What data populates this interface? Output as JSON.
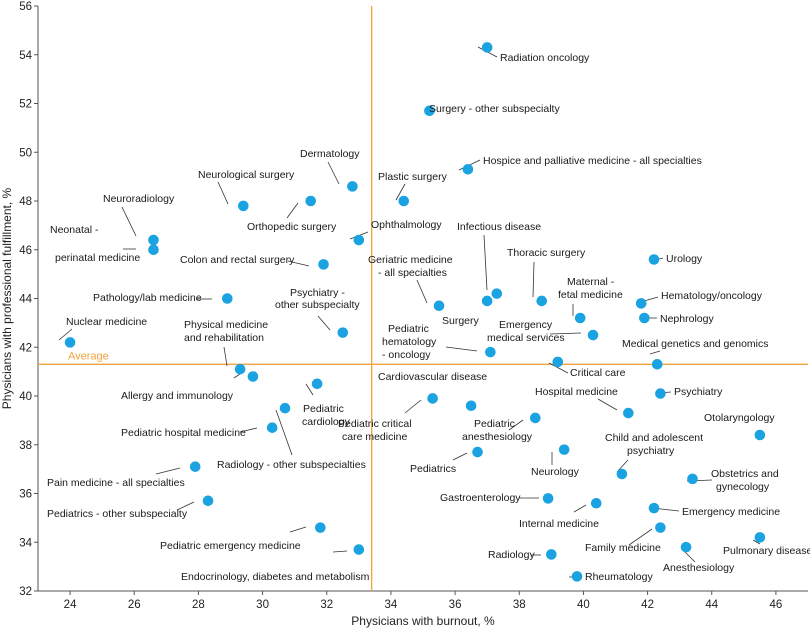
{
  "chart_data": {
    "type": "scatter",
    "xlabel": "Physicians with burnout, %",
    "ylabel": "Physicians with professional fulfillment, %",
    "xlim": [
      23,
      47
    ],
    "ylim": [
      32,
      56
    ],
    "xticks": [
      24,
      26,
      28,
      30,
      32,
      34,
      36,
      38,
      40,
      42,
      44,
      46
    ],
    "yticks": [
      32,
      34,
      36,
      38,
      40,
      42,
      44,
      46,
      48,
      50,
      52,
      54,
      56
    ],
    "grid": false,
    "colors": {
      "point": "#1aa3e0",
      "average": "#f0a23c",
      "axis": "#555555",
      "leader": "#333333"
    },
    "average": {
      "label": "Average",
      "x": 33.4,
      "y": 41.3
    },
    "points": [
      {
        "label": "Radiation oncology",
        "x": 37.0,
        "y": 54.3
      },
      {
        "label": "Surgery - other subspecialty",
        "x": 35.2,
        "y": 51.7
      },
      {
        "label": "Hospice and palliative medicine - all specialties",
        "x": 36.4,
        "y": 49.3
      },
      {
        "label": "Dermatology",
        "x": 32.8,
        "y": 48.6
      },
      {
        "label": "Plastic surgery",
        "x": 34.4,
        "y": 48.0
      },
      {
        "label": "Neurological surgery",
        "x": 29.4,
        "y": 47.8
      },
      {
        "label": "Orthopedic surgery",
        "x": 31.5,
        "y": 48.0
      },
      {
        "label": "Neuroradiology",
        "x": 26.6,
        "y": 46.4
      },
      {
        "label": "Neonatal - perinatal medicine",
        "x": 26.6,
        "y": 46.0
      },
      {
        "label": "Ophthalmology",
        "x": 33.0,
        "y": 46.4
      },
      {
        "label": "Colon and rectal surgery",
        "x": 31.9,
        "y": 45.4
      },
      {
        "label": "Infectious disease",
        "x": 37.3,
        "y": 44.2
      },
      {
        "label": "Urology",
        "x": 42.2,
        "y": 45.6
      },
      {
        "label": "Thoracic surgery",
        "x": 38.7,
        "y": 43.9
      },
      {
        "label": "Geriatric medicine - all specialties",
        "x": 35.5,
        "y": 43.7
      },
      {
        "label": "Surgery",
        "x": 37.0,
        "y": 43.9
      },
      {
        "label": "Pathology/lab medicine",
        "x": 28.9,
        "y": 44.0
      },
      {
        "label": "Maternal - fetal medicine",
        "x": 39.9,
        "y": 43.2
      },
      {
        "label": "Hematology/oncology",
        "x": 41.8,
        "y": 43.8
      },
      {
        "label": "Nephrology",
        "x": 41.9,
        "y": 43.2
      },
      {
        "label": "Psychiatry - other subspecialty",
        "x": 32.5,
        "y": 42.6
      },
      {
        "label": "Emergency medical services",
        "x": 40.3,
        "y": 42.5
      },
      {
        "label": "Nuclear medicine",
        "x": 24.0,
        "y": 42.2
      },
      {
        "label": "Pediatric hematology - oncology",
        "x": 37.1,
        "y": 41.8
      },
      {
        "label": "Physical medicine and rehabilitation",
        "x": 29.3,
        "y": 41.1
      },
      {
        "label": "Medical genetics and genomics",
        "x": 42.3,
        "y": 41.3
      },
      {
        "label": "Critical care",
        "x": 39.2,
        "y": 41.4
      },
      {
        "label": "Allergy and immunology",
        "x": 29.7,
        "y": 40.8
      },
      {
        "label": "Pediatric cardiology",
        "x": 31.7,
        "y": 40.5
      },
      {
        "label": "Cardiovascular disease",
        "x": 36.5,
        "y": 39.6
      },
      {
        "label": "Pediatric critical care medicine",
        "x": 35.3,
        "y": 39.9
      },
      {
        "label": "Psychiatry",
        "x": 42.4,
        "y": 40.1
      },
      {
        "label": "Hospital medicine",
        "x": 41.4,
        "y": 39.3
      },
      {
        "label": "Pediatric anesthesiology",
        "x": 38.5,
        "y": 39.1
      },
      {
        "label": "Radiology - other subspecialties",
        "x": 30.7,
        "y": 39.5
      },
      {
        "label": "Pediatric hospital medicine",
        "x": 30.3,
        "y": 38.7
      },
      {
        "label": "Otolaryngology",
        "x": 45.5,
        "y": 38.4
      },
      {
        "label": "Pediatrics",
        "x": 36.7,
        "y": 37.7
      },
      {
        "label": "Neurology",
        "x": 39.4,
        "y": 37.8
      },
      {
        "label": "Child and adolescent psychiatry",
        "x": 41.2,
        "y": 36.8
      },
      {
        "label": "Pain medicine - all specialties",
        "x": 27.9,
        "y": 37.1
      },
      {
        "label": "Obstetrics and gynecology",
        "x": 43.4,
        "y": 36.6
      },
      {
        "label": "Gastroenterology",
        "x": 38.9,
        "y": 35.8
      },
      {
        "label": "Internal medicine",
        "x": 40.4,
        "y": 35.6
      },
      {
        "label": "Pediatrics - other subspecialty",
        "x": 28.3,
        "y": 35.7
      },
      {
        "label": "Emergency medicine",
        "x": 42.2,
        "y": 35.4
      },
      {
        "label": "Family medicine",
        "x": 42.4,
        "y": 34.6
      },
      {
        "label": "Pediatric emergency medicine",
        "x": 31.8,
        "y": 34.6
      },
      {
        "label": "Pulmonary disease",
        "x": 45.5,
        "y": 34.2
      },
      {
        "label": "Anesthesiology",
        "x": 43.2,
        "y": 33.8
      },
      {
        "label": "Radiology",
        "x": 39.0,
        "y": 33.5
      },
      {
        "label": "Endocrinology, diabetes and metabolism",
        "x": 33.0,
        "y": 33.7
      },
      {
        "label": "Rheumatology",
        "x": 39.8,
        "y": 32.6
      }
    ]
  }
}
